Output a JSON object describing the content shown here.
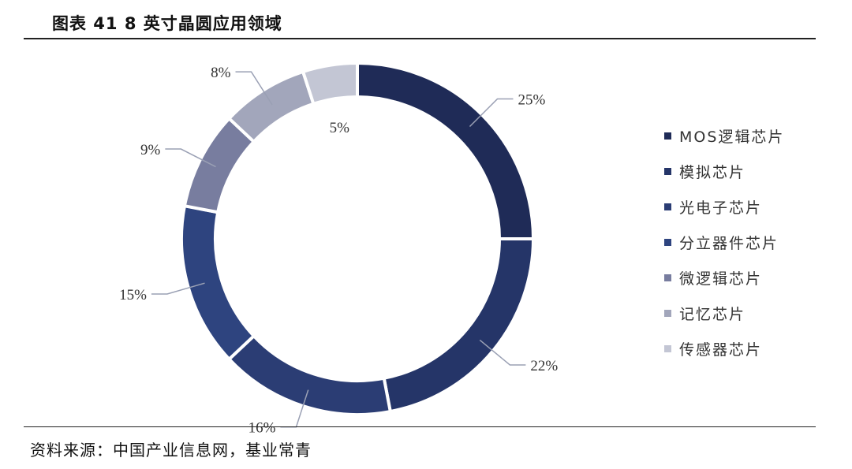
{
  "title": "图表 41 8 英寸晶圆应用领域",
  "source": "资料来源：中国产业信息网，基业常青",
  "chart_data": {
    "type": "pie",
    "variant": "donut",
    "legend_position": "right",
    "categories": [
      "MOS逻辑芯片",
      "模拟芯片",
      "光电子芯片",
      "分立器件芯片",
      "微逻辑芯片",
      "记忆芯片",
      "传感器芯片"
    ],
    "values": [
      25,
      22,
      16,
      15,
      9,
      8,
      5
    ],
    "labels": [
      "25%",
      "22%",
      "16%",
      "15%",
      "9%",
      "8%",
      "5%"
    ],
    "colors": [
      "#1f2b57",
      "#253568",
      "#2b3d74",
      "#2e447f",
      "#787d9f",
      "#a2a6bb",
      "#c3c6d4"
    ]
  }
}
